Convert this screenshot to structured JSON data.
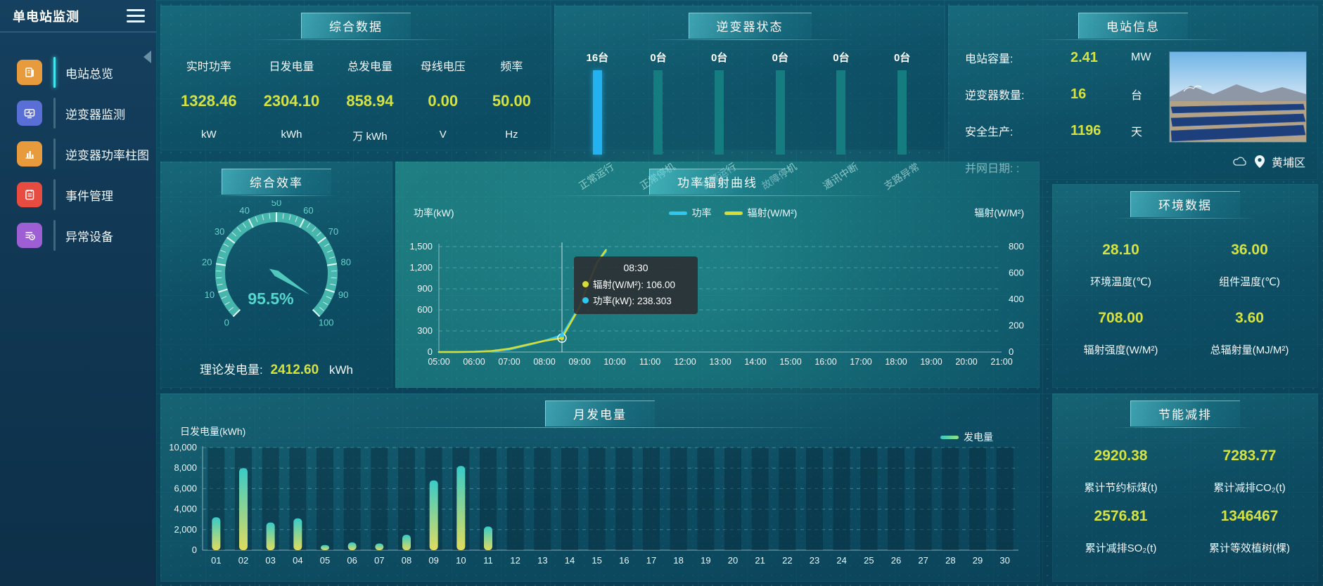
{
  "app": {
    "title": "单电站监测"
  },
  "colors": {
    "accent_value": "#d6e23f",
    "power_line": "#2ec7f2",
    "radiation_line": "#d8dd35",
    "active_bar": "#23b2ef",
    "idle_bar": "#157d80",
    "gauge": "#4cc2b8"
  },
  "sidebar": {
    "items": [
      {
        "label": "电站总览",
        "icon": "station-overview-icon",
        "color": "#e89b3c",
        "active": true
      },
      {
        "label": "逆变器监测",
        "icon": "inverter-monitor-icon",
        "color": "#5a6fd6",
        "active": false
      },
      {
        "label": "逆变器功率柱图",
        "icon": "inverter-power-bars-icon",
        "color": "#e89b3c",
        "active": false
      },
      {
        "label": "事件管理",
        "icon": "event-management-icon",
        "color": "#e84b40",
        "active": false
      },
      {
        "label": "异常设备",
        "icon": "abnormal-device-icon",
        "color": "#9e5fd4",
        "active": false
      }
    ]
  },
  "summary": {
    "title": "综合数据",
    "metrics": [
      {
        "label": "实时功率",
        "value": "1328.46",
        "unit": "kW"
      },
      {
        "label": "日发电量",
        "value": "2304.10",
        "unit": "kWh"
      },
      {
        "label": "总发电量",
        "value": "858.94",
        "unit": "万 kWh"
      },
      {
        "label": "母线电压",
        "value": "0.00",
        "unit": "V"
      },
      {
        "label": "频率",
        "value": "50.00",
        "unit": "Hz"
      }
    ]
  },
  "inverter_status": {
    "title": "逆变器状态",
    "bars": [
      {
        "count": "16台",
        "label": "正常运行",
        "active": true
      },
      {
        "count": "0台",
        "label": "正常停机",
        "active": false
      },
      {
        "count": "0台",
        "label": "告警运行",
        "active": false
      },
      {
        "count": "0台",
        "label": "故障停机",
        "active": false
      },
      {
        "count": "0台",
        "label": "通讯中断",
        "active": false
      },
      {
        "count": "0台",
        "label": "支路异常",
        "active": false
      }
    ]
  },
  "station_info": {
    "title": "电站信息",
    "rows": [
      {
        "label": "电站容量:",
        "value": "2.41",
        "unit": "MW"
      },
      {
        "label": "逆变器数量:",
        "value": "16",
        "unit": "台"
      },
      {
        "label": "安全生产:",
        "value": "1196",
        "unit": "天"
      },
      {
        "label": "并网日期: :",
        "value": "",
        "unit": ""
      }
    ],
    "location": "黄埔区"
  },
  "efficiency": {
    "title": "综合效率",
    "gauge_text": "95.5%",
    "theory_label": "理论发电量:",
    "theory_value": "2412.60",
    "theory_unit": "kWh"
  },
  "power_curve": {
    "title": "功率辐射曲线",
    "left_axis_name": "功率(kW)",
    "right_axis_name": "辐射(W/M²)",
    "legend": [
      {
        "label": "功率",
        "color": "#2ec7f2"
      },
      {
        "label": "辐射(W/M²)",
        "color": "#d8dd35"
      }
    ],
    "tooltip": {
      "time": "08:30",
      "rows": [
        {
          "dot_color": "#d8dd35",
          "text": "辐射(W/M²): 106.00"
        },
        {
          "dot_color": "#2ec7f2",
          "text": "功率(kW): 238.303"
        }
      ]
    }
  },
  "environment": {
    "title": "环境数据",
    "metrics": [
      {
        "value": "28.10",
        "label": "环境温度(℃)"
      },
      {
        "value": "36.00",
        "label": "组件温度(℃)"
      },
      {
        "value": "708.00",
        "label": "辐射强度(W/M²)"
      },
      {
        "value": "3.60",
        "label": "总辐射量(MJ/M²)"
      }
    ]
  },
  "monthly": {
    "title": "月发电量",
    "axis_name": "日发电量(kWh)",
    "legend_label": "发电量"
  },
  "saving": {
    "title": "节能减排",
    "metrics": [
      {
        "value": "2920.38",
        "label": "累计节约标煤(t)"
      },
      {
        "value": "7283.77",
        "label": "累计减排CO₂(t)"
      },
      {
        "value": "2576.81",
        "label": "累计减排SO₂(t)"
      },
      {
        "value": "1346467",
        "label": "累计等效植树(棵)"
      }
    ]
  },
  "chart_data": [
    {
      "id": "efficiency-gauge",
      "type": "gauge",
      "title": "综合效率",
      "value": 95.5,
      "unit": "%",
      "min": 0,
      "max": 100,
      "tick_step": 10,
      "tick_labels": [
        0,
        10,
        20,
        30,
        40,
        50,
        60,
        70,
        80,
        90,
        100
      ]
    },
    {
      "id": "power-radiation",
      "type": "line",
      "title": "功率辐射曲线",
      "x_hours": [
        5,
        5.5,
        6,
        6.5,
        7,
        7.5,
        8,
        8.5,
        9,
        9.25,
        9.5,
        9.75
      ],
      "x_axis_ticks": [
        "05:00",
        "06:00",
        "07:00",
        "08:00",
        "09:00",
        "10:00",
        "11:00",
        "12:00",
        "13:00",
        "14:00",
        "15:00",
        "16:00",
        "17:00",
        "18:00",
        "19:00",
        "20:00",
        "21:00"
      ],
      "series": [
        {
          "name": "功率",
          "axis": "left",
          "color": "#2ec7f2",
          "values": [
            0,
            1,
            3,
            10,
            35,
            95,
            160,
            238.3,
            650,
            980,
            1280,
            1430
          ]
        },
        {
          "name": "辐射(W/M²)",
          "axis": "right",
          "color": "#d8dd35",
          "values": [
            0,
            0,
            2,
            8,
            25,
            55,
            85,
            106,
            340,
            520,
            680,
            775
          ]
        }
      ],
      "left_axis": {
        "name": "功率(kW)",
        "min": 0,
        "max": 1500,
        "step": 300
      },
      "right_axis": {
        "name": "辐射(W/M²)",
        "min": 0,
        "max": 800,
        "step": 200
      },
      "crosshair_x": 8.5,
      "highlight": {
        "time": "08:30",
        "radiation": 106.0,
        "power": 238.303
      },
      "grid": "dashed",
      "legend_position": "top-right"
    },
    {
      "id": "monthly-generation",
      "type": "bar",
      "title": "月发电量",
      "categories": [
        "01",
        "02",
        "03",
        "04",
        "05",
        "06",
        "07",
        "08",
        "09",
        "10",
        "11",
        "12",
        "13",
        "14",
        "15",
        "16",
        "17",
        "18",
        "19",
        "20",
        "21",
        "22",
        "23",
        "24",
        "25",
        "26",
        "27",
        "28",
        "29",
        "30"
      ],
      "values": [
        3200,
        8000,
        2700,
        3100,
        500,
        750,
        650,
        1500,
        6800,
        8200,
        2300,
        0,
        0,
        0,
        0,
        0,
        0,
        0,
        0,
        0,
        0,
        0,
        0,
        0,
        0,
        0,
        0,
        0,
        0,
        0
      ],
      "ylabel": "日发电量(kWh)",
      "ylim": [
        0,
        10000
      ],
      "ystep": 2000,
      "legend": [
        "发电量"
      ],
      "grid": "dashed"
    }
  ]
}
